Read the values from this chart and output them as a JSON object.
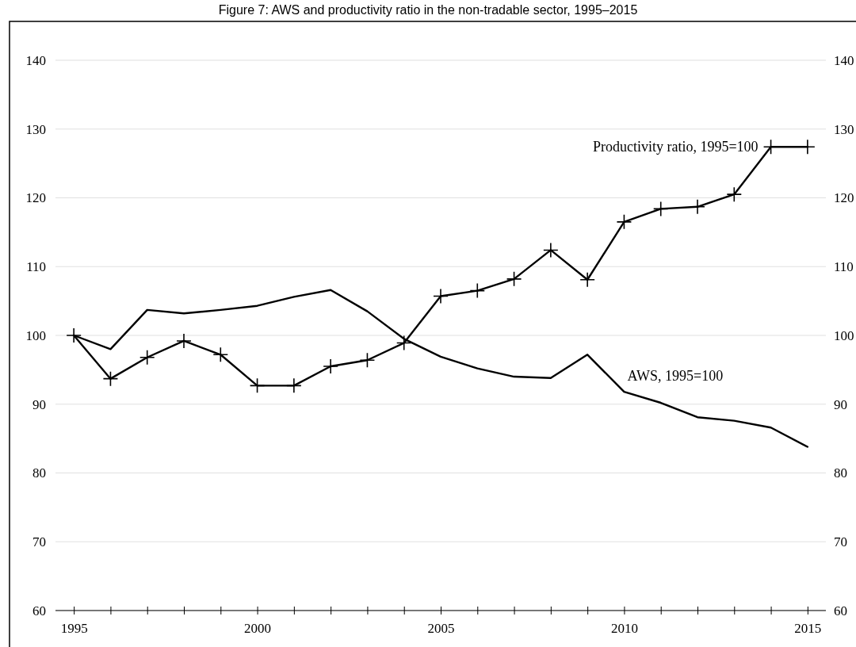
{
  "chart_data": {
    "type": "line",
    "title": "Figure 7: AWS and productivity ratio in the non-tradable sector, 1995–2015",
    "x": [
      1995,
      1996,
      1997,
      1998,
      1999,
      2000,
      2001,
      2002,
      2003,
      2004,
      2005,
      2006,
      2007,
      2008,
      2009,
      2010,
      2011,
      2012,
      2013,
      2014,
      2015
    ],
    "series": [
      {
        "name": "Productivity ratio, 1995=100",
        "color": "#000000",
        "marker": "cross",
        "values": [
          100,
          93.7,
          96.8,
          99.2,
          97.2,
          92.7,
          92.7,
          95.5,
          96.4,
          98.9,
          105.7,
          106.5,
          108.2,
          112.4,
          108.1,
          116.5,
          118.4,
          118.7,
          120.5,
          127.4,
          127.4
        ]
      },
      {
        "name": "AWS, 1995=100",
        "color": "#000000",
        "marker": "none",
        "values": [
          100,
          98.0,
          103.7,
          103.2,
          103.7,
          104.3,
          105.6,
          106.6,
          103.5,
          99.5,
          96.9,
          95.2,
          94.0,
          93.8,
          97.2,
          91.8,
          90.2,
          88.1,
          87.6,
          86.6,
          83.8
        ]
      }
    ],
    "xlim": [
      1994.5,
      2015.5
    ],
    "xticks": [
      1995,
      {
        "value": 1996,
        "label": null
      },
      {
        "value": 1997,
        "label": null
      },
      {
        "value": 1998,
        "label": null
      },
      {
        "value": 1999,
        "label": null
      },
      2000,
      {
        "value": 2001,
        "label": null
      },
      {
        "value": 2002,
        "label": null
      },
      {
        "value": 2003,
        "label": null
      },
      {
        "value": 2004,
        "label": null
      },
      2005,
      {
        "value": 2006,
        "label": null
      },
      {
        "value": 2007,
        "label": null
      },
      {
        "value": 2008,
        "label": null
      },
      {
        "value": 2009,
        "label": null
      },
      2010,
      {
        "value": 2011,
        "label": null
      },
      {
        "value": 2012,
        "label": null
      },
      {
        "value": 2013,
        "label": null
      },
      {
        "value": 2014,
        "label": null
      },
      2015
    ],
    "ylim": [
      60,
      140
    ],
    "yticks": [
      60,
      70,
      80,
      90,
      100,
      110,
      120,
      130,
      140
    ],
    "y2lim": [
      60,
      140
    ],
    "y2ticks": [
      60,
      70,
      80,
      90,
      100,
      110,
      120,
      130,
      140
    ],
    "grid": "y",
    "line_style": "solid"
  }
}
